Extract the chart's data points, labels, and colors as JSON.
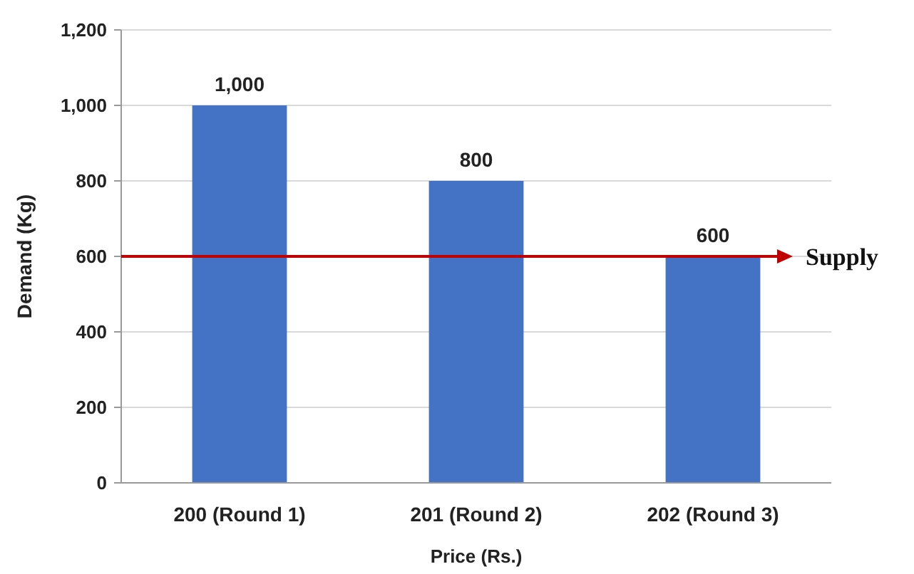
{
  "chart_data": {
    "type": "bar",
    "xlabel": "Price (Rs.)",
    "ylabel": "Demand (Kg)",
    "categories": [
      "200 (Round 1)",
      "201 (Round 2)",
      "202 (Round 3)"
    ],
    "values": [
      1000,
      800,
      600
    ],
    "color": "#4472c4",
    "value_labels": [
      "1,000",
      "800",
      "600"
    ],
    "ylim": [
      0,
      1200
    ],
    "yticks": [
      0,
      200,
      400,
      600,
      800,
      {
        "value": 1000,
        "label": "1,000"
      },
      {
        "value": 1200,
        "label": "1,200"
      }
    ],
    "grid": "y",
    "ref_lines": [
      {
        "axis": "y",
        "value": 600,
        "label": "Supply",
        "color": "#c00000",
        "line_style": "solid"
      }
    ]
  }
}
